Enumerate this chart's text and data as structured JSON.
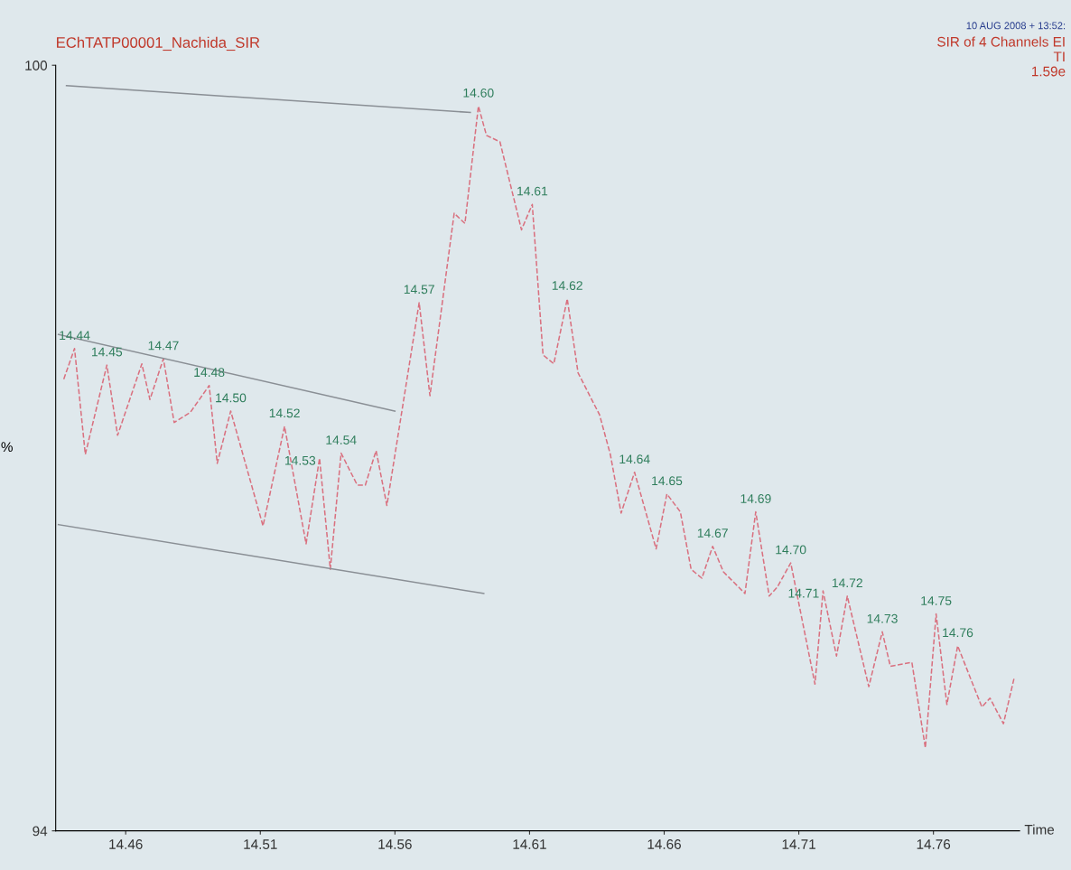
{
  "chart_data": {
    "type": "line",
    "title": "EChTATP00001_Nachida_SIR",
    "xlabel": "Time",
    "ylabel": "%",
    "xlim": [
      14.434,
      14.792
    ],
    "ylim": [
      94,
      100
    ],
    "xticks": [
      14.46,
      14.51,
      14.56,
      14.61,
      14.66,
      14.71,
      14.76
    ],
    "yticks": [
      100,
      94
    ],
    "grid": false,
    "legend": false,
    "marker": "none",
    "series": [
      {
        "color": "#d9707f",
        "line_style": "dashed",
        "x": [
          14.437,
          14.441,
          14.445,
          14.453,
          14.457,
          14.466,
          14.469,
          14.474,
          14.478,
          14.484,
          14.491,
          14.494,
          14.499,
          14.511,
          14.519,
          14.527,
          14.532,
          14.536,
          14.54,
          14.546,
          14.549,
          14.553,
          14.557,
          14.569,
          14.573,
          14.582,
          14.586,
          14.591,
          14.594,
          14.599,
          14.607,
          14.611,
          14.615,
          14.619,
          14.624,
          14.628,
          14.636,
          14.64,
          14.644,
          14.649,
          14.657,
          14.661,
          14.666,
          14.67,
          14.674,
          14.678,
          14.682,
          14.69,
          14.694,
          14.699,
          14.702,
          14.707,
          14.716,
          14.719,
          14.724,
          14.728,
          14.736,
          14.741,
          14.744,
          14.752,
          14.757,
          14.761,
          14.765,
          14.769,
          14.778,
          14.781,
          14.786,
          14.79
        ],
        "values": [
          97.54,
          97.78,
          96.95,
          97.65,
          97.1,
          97.66,
          97.38,
          97.7,
          97.2,
          97.28,
          97.49,
          96.88,
          97.29,
          96.39,
          97.17,
          96.25,
          96.92,
          96.05,
          96.96,
          96.71,
          96.71,
          96.98,
          96.55,
          98.14,
          97.41,
          98.84,
          98.76,
          99.68,
          99.45,
          99.4,
          98.71,
          98.91,
          97.73,
          97.66,
          98.17,
          97.59,
          97.26,
          96.95,
          96.49,
          96.81,
          96.21,
          96.64,
          96.5,
          96.05,
          95.98,
          96.23,
          96.03,
          95.86,
          96.5,
          95.84,
          95.91,
          96.1,
          95.15,
          95.88,
          95.37,
          95.84,
          95.13,
          95.56,
          95.29,
          95.32,
          94.65,
          95.7,
          94.99,
          95.45,
          94.97,
          95.04,
          94.84,
          95.2
        ]
      },
      {
        "color": "#8a8f95",
        "line_style": "solid",
        "x": [
          14.438,
          14.588
        ],
        "values": [
          99.84,
          99.63
        ]
      },
      {
        "color": "#8a8f95",
        "line_style": "solid",
        "x": [
          14.435,
          14.56
        ],
        "values": [
          97.89,
          97.29
        ]
      },
      {
        "color": "#8a8f95",
        "line_style": "solid",
        "x": [
          14.435,
          14.593
        ],
        "values": [
          96.4,
          95.86
        ]
      }
    ],
    "annotations": [
      {
        "text": "14.44",
        "x": 14.441,
        "y": 97.78
      },
      {
        "text": "14.45",
        "x": 14.453,
        "y": 97.65
      },
      {
        "text": "14.47",
        "x": 14.474,
        "y": 97.7
      },
      {
        "text": "14.48",
        "x": 14.491,
        "y": 97.49
      },
      {
        "text": "14.50",
        "x": 14.499,
        "y": 97.29
      },
      {
        "text": "14.52",
        "x": 14.519,
        "y": 97.17
      },
      {
        "text": "14.53",
        "x": 14.532,
        "y": 96.92
      },
      {
        "text": "14.54",
        "x": 14.54,
        "y": 96.96
      },
      {
        "text": "14.57",
        "x": 14.569,
        "y": 98.14
      },
      {
        "text": "14.60",
        "x": 14.591,
        "y": 99.68
      },
      {
        "text": "14.61",
        "x": 14.611,
        "y": 98.91
      },
      {
        "text": "14.62",
        "x": 14.624,
        "y": 98.17
      },
      {
        "text": "14.64",
        "x": 14.649,
        "y": 96.81
      },
      {
        "text": "14.65",
        "x": 14.661,
        "y": 96.64
      },
      {
        "text": "14.67",
        "x": 14.678,
        "y": 96.23
      },
      {
        "text": "14.69",
        "x": 14.694,
        "y": 96.5
      },
      {
        "text": "14.70",
        "x": 14.707,
        "y": 96.1
      },
      {
        "text": "14.71",
        "x": 14.719,
        "y": 95.88
      },
      {
        "text": "14.72",
        "x": 14.728,
        "y": 95.84
      },
      {
        "text": "14.73",
        "x": 14.741,
        "y": 95.56
      },
      {
        "text": "14.75",
        "x": 14.761,
        "y": 95.7
      },
      {
        "text": "14.76",
        "x": 14.769,
        "y": 95.45
      },
      "10 AUG 2008 + 13:52:",
      "SIR of 4 Channels EI",
      "TI",
      "1.59e"
    ]
  }
}
